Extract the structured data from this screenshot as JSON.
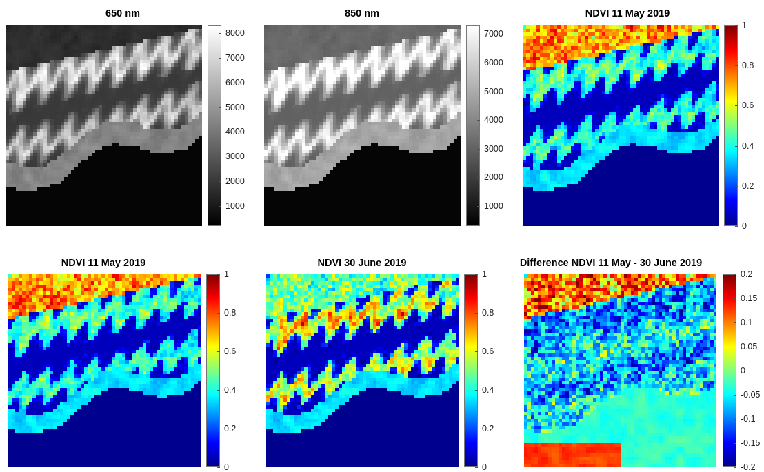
{
  "colormaps": {
    "gray": [
      "#000000",
      "#ffffff"
    ],
    "jet": [
      "#00008f",
      "#0000ff",
      "#0080ff",
      "#00ffff",
      "#80ff80",
      "#ffff00",
      "#ff8000",
      "#ff0000",
      "#800000"
    ]
  },
  "chart_data": [
    {
      "type": "heatmap",
      "title": "650 nm",
      "colormap": "gray",
      "colorbar": {
        "min": 200,
        "max": 8300,
        "ticks": [
          "8000",
          "7000",
          "6000",
          "5000",
          "4000",
          "3000",
          "2000",
          "1000"
        ],
        "tick_values": [
          8000,
          7000,
          6000,
          5000,
          4000,
          3000,
          2000,
          1000
        ]
      }
    },
    {
      "type": "heatmap",
      "title": "850 nm",
      "colormap": "gray",
      "colorbar": {
        "min": 300,
        "max": 7300,
        "ticks": [
          "7000",
          "6000",
          "5000",
          "4000",
          "3000",
          "2000",
          "1000"
        ],
        "tick_values": [
          7000,
          6000,
          5000,
          4000,
          3000,
          2000,
          1000
        ]
      }
    },
    {
      "type": "heatmap",
      "title": "NDVI 11 May 2019",
      "colormap": "jet",
      "colorbar": {
        "min": 0,
        "max": 1,
        "ticks": [
          "1",
          "0.8",
          "0.6",
          "0.4",
          "0.2",
          "0"
        ],
        "tick_values": [
          1,
          0.8,
          0.6,
          0.4,
          0.2,
          0
        ]
      }
    },
    {
      "type": "heatmap",
      "title": "NDVI 11 May 2019",
      "colormap": "jet",
      "colorbar": {
        "min": 0,
        "max": 1,
        "ticks": [
          "1",
          "0.8",
          "0.6",
          "0.4",
          "0.2",
          "0"
        ],
        "tick_values": [
          1,
          0.8,
          0.6,
          0.4,
          0.2,
          0
        ]
      }
    },
    {
      "type": "heatmap",
      "title": "NDVI 30 June 2019",
      "colormap": "jet",
      "colorbar": {
        "min": 0,
        "max": 1,
        "ticks": [
          "1",
          "0.8",
          "0.6",
          "0.4",
          "0.2",
          "0"
        ],
        "tick_values": [
          1,
          0.8,
          0.6,
          0.4,
          0.2,
          0
        ]
      }
    },
    {
      "type": "heatmap",
      "title": "Difference NDVI 11 May - 30 June 2019",
      "colormap": "jet",
      "colorbar": {
        "min": -0.2,
        "max": 0.2,
        "ticks": [
          "0.2",
          "0.15",
          "0.1",
          "0.05",
          "0",
          "-0.05",
          "-0.1",
          "-0.15",
          "-0.2"
        ],
        "tick_values": [
          0.2,
          0.15,
          0.1,
          0.05,
          0,
          -0.05,
          -0.1,
          -0.15,
          -0.2
        ]
      }
    }
  ]
}
